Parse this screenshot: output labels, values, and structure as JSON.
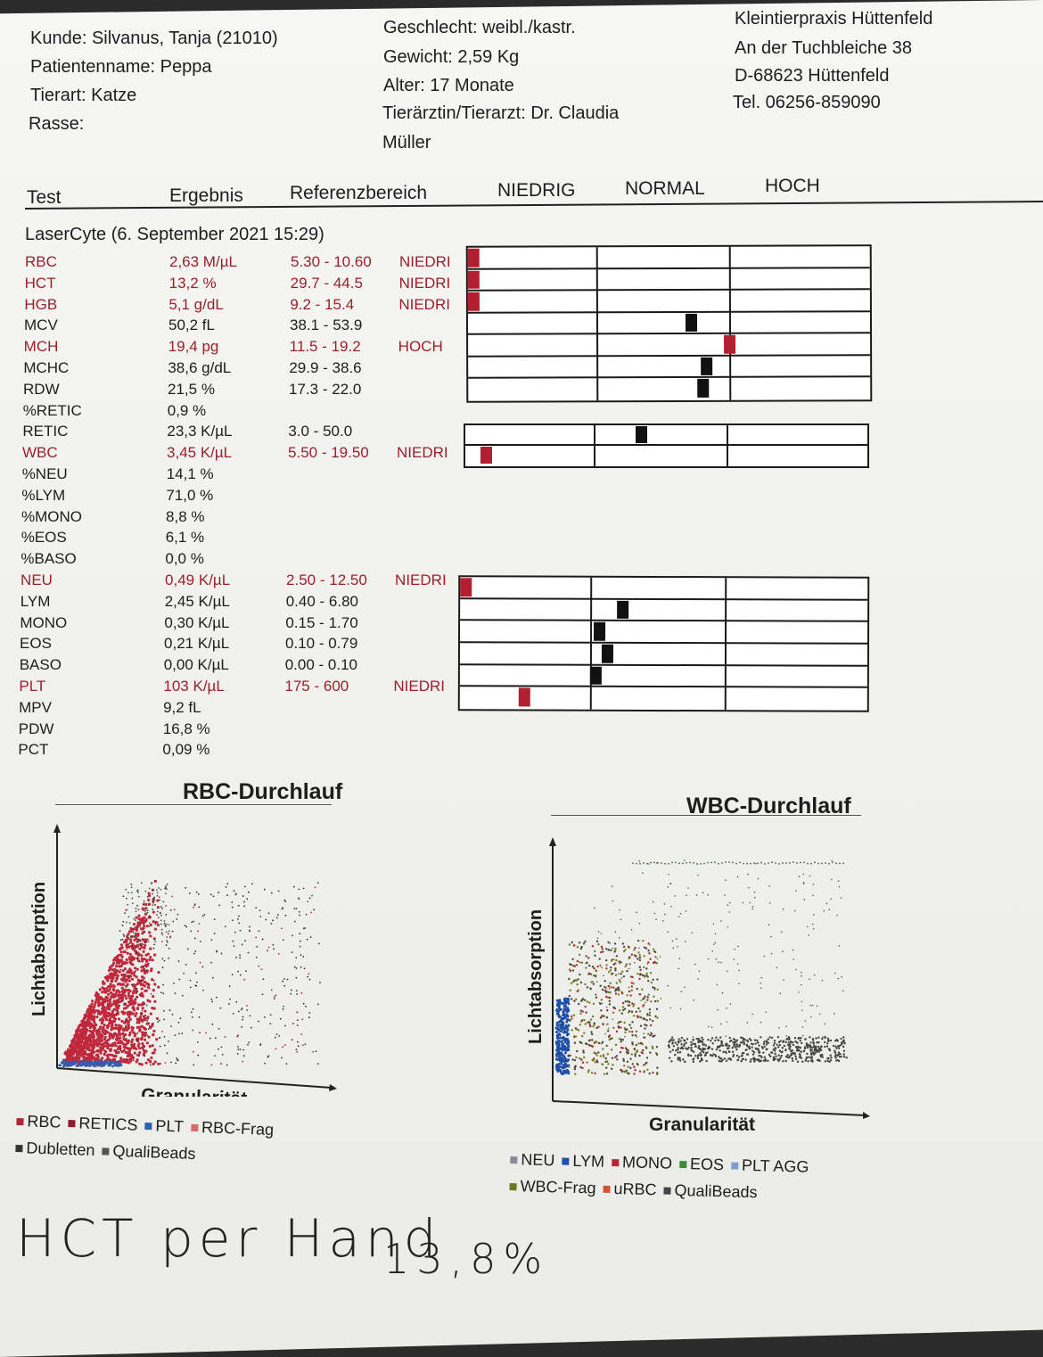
{
  "header": {
    "kunde": "Kunde: Silvanus, Tanja (21010)",
    "patient": "Patientenname: Peppa",
    "tierart": "Tierart: Katze",
    "rasse": "Rasse:",
    "geschlecht": "Geschlecht: weibl./kastr.",
    "gewicht": "Gewicht: 2,59 Kg",
    "alter": "Alter: 17 Monate",
    "arzt_1": "Tierärztin/Tierarzt: Dr. Claudia",
    "arzt_2": "Müller",
    "praxis_name": "Kleintierpraxis Hüttenfeld",
    "praxis_street": "An der Tuchbleiche 38",
    "praxis_city": "D-68623 Hüttenfeld",
    "praxis_tel": "Tel. 06256-859090"
  },
  "columns": {
    "test": "Test",
    "ergebnis": "Ergebnis",
    "referenz": "Referenzbereich",
    "niedrig": "NIEDRIG",
    "normal": "NORMAL",
    "hoch": "HOCH"
  },
  "run_title": "LaserCyte (6. September 2021 15:29)",
  "rows": [
    {
      "test": "RBC",
      "result": "2,63 M/µL",
      "range": "5.30 - 10.60",
      "flag": "NIEDRI",
      "abnormal": true
    },
    {
      "test": "HCT",
      "result": "13,2 %",
      "range": "29.7 - 44.5",
      "flag": "NIEDRI",
      "abnormal": true
    },
    {
      "test": "HGB",
      "result": "5,1 g/dL",
      "range": "9.2 - 15.4",
      "flag": "NIEDRI",
      "abnormal": true
    },
    {
      "test": "MCV",
      "result": "50,2 fL",
      "range": "38.1 - 53.9",
      "flag": "",
      "abnormal": false
    },
    {
      "test": "MCH",
      "result": "19,4 pg",
      "range": "11.5 - 19.2",
      "flag": "HOCH",
      "abnormal": true
    },
    {
      "test": "MCHC",
      "result": "38,6 g/dL",
      "range": "29.9 - 38.6",
      "flag": "",
      "abnormal": false
    },
    {
      "test": "RDW",
      "result": "21,5 %",
      "range": "17.3 - 22.0",
      "flag": "",
      "abnormal": false
    },
    {
      "test": "%RETIC",
      "result": "0,9 %",
      "range": "",
      "flag": "",
      "abnormal": false
    },
    {
      "test": "RETIC",
      "result": "23,3 K/µL",
      "range": "3.0 - 50.0",
      "flag": "",
      "abnormal": false
    },
    {
      "test": "WBC",
      "result": "3,45 K/µL",
      "range": "5.50 - 19.50",
      "flag": "NIEDRI",
      "abnormal": true
    },
    {
      "test": "%NEU",
      "result": "14,1 %",
      "range": "",
      "flag": "",
      "abnormal": false
    },
    {
      "test": "%LYM",
      "result": "71,0 %",
      "range": "",
      "flag": "",
      "abnormal": false
    },
    {
      "test": "%MONO",
      "result": "8,8 %",
      "range": "",
      "flag": "",
      "abnormal": false
    },
    {
      "test": "%EOS",
      "result": "6,1 %",
      "range": "",
      "flag": "",
      "abnormal": false
    },
    {
      "test": "%BASO",
      "result": "0,0 %",
      "range": "",
      "flag": "",
      "abnormal": false
    },
    {
      "test": "NEU",
      "result": "0,49 K/µL",
      "range": "2.50 - 12.50",
      "flag": "NIEDRI",
      "abnormal": true
    },
    {
      "test": "LYM",
      "result": "2,45 K/µL",
      "range": "0.40 - 6.80",
      "flag": "",
      "abnormal": false
    },
    {
      "test": "MONO",
      "result": "0,30 K/µL",
      "range": "0.15 - 1.70",
      "flag": "",
      "abnormal": false
    },
    {
      "test": "EOS",
      "result": "0,21 K/µL",
      "range": "0.10 - 0.79",
      "flag": "",
      "abnormal": false
    },
    {
      "test": "BASO",
      "result": "0,00 K/µL",
      "range": "0.00 - 0.10",
      "flag": "",
      "abnormal": false
    },
    {
      "test": "PLT",
      "result": "103 K/µL",
      "range": "175 - 600",
      "flag": "NIEDRI",
      "abnormal": true
    },
    {
      "test": "MPV",
      "result": "9,2 fL",
      "range": "",
      "flag": "",
      "abnormal": false
    },
    {
      "test": "PDW",
      "result": "16,8 %",
      "range": "",
      "flag": "",
      "abnormal": false
    },
    {
      "test": "PCT",
      "result": "0,09 %",
      "range": "",
      "flag": "",
      "abnormal": false
    }
  ],
  "bar_levels": {
    "group1": [
      0.0,
      0.0,
      0.0,
      0.56,
      0.66,
      0.6,
      0.59
    ],
    "group2": [
      0.44,
      0.04
    ],
    "group3": [
      0.0,
      0.4,
      0.34,
      0.36,
      0.33,
      0.15
    ]
  },
  "rbc_plot": {
    "title": "RBC-Durchlauf",
    "ylabel": "Lichtabsorption",
    "xlabel": "Granularität",
    "legend": [
      {
        "label": "RBC",
        "color": "#b3263a"
      },
      {
        "label": "RETICS",
        "color": "#8b1a2a"
      },
      {
        "label": "PLT",
        "color": "#2e5fb0"
      },
      {
        "label": "RBC-Frag",
        "color": "#d86a6a"
      },
      {
        "label": "Dubletten",
        "color": "#333333"
      },
      {
        "label": "QualiBeads",
        "color": "#555555"
      }
    ]
  },
  "wbc_plot": {
    "title": "WBC-Durchlauf",
    "ylabel": "Lichtabsorption",
    "xlabel": "Granularität",
    "legend": [
      {
        "label": "NEU",
        "color": "#8a8a9a"
      },
      {
        "label": "LYM",
        "color": "#1f4fa8"
      },
      {
        "label": "MONO",
        "color": "#b3263a"
      },
      {
        "label": "EOS",
        "color": "#3f8a3a"
      },
      {
        "label": "PLT AGG",
        "color": "#7aa0d6"
      },
      {
        "label": "WBC-Frag",
        "color": "#6a7a20"
      },
      {
        "label": "uRBC",
        "color": "#d8503a"
      },
      {
        "label": "QualiBeads",
        "color": "#444444"
      }
    ]
  },
  "handwriting": {
    "left": "HCT per Hand",
    "right": "13,8%"
  }
}
